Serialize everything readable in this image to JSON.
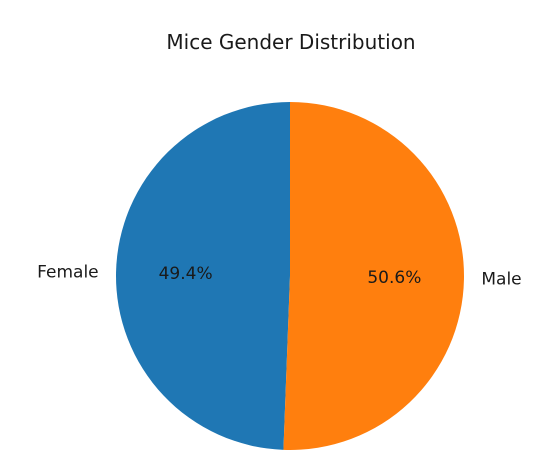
{
  "chart_data": {
    "type": "pie",
    "title": "Mice Gender Distribution",
    "categories": [
      "Female",
      "Male"
    ],
    "values": [
      49.4,
      50.6
    ],
    "percent_labels": [
      "49.4%",
      "50.6%"
    ],
    "colors": [
      "#1f77b4",
      "#ff7f0e"
    ],
    "start_angle_deg": 90,
    "direction": "counterclockwise",
    "legend": "none"
  }
}
